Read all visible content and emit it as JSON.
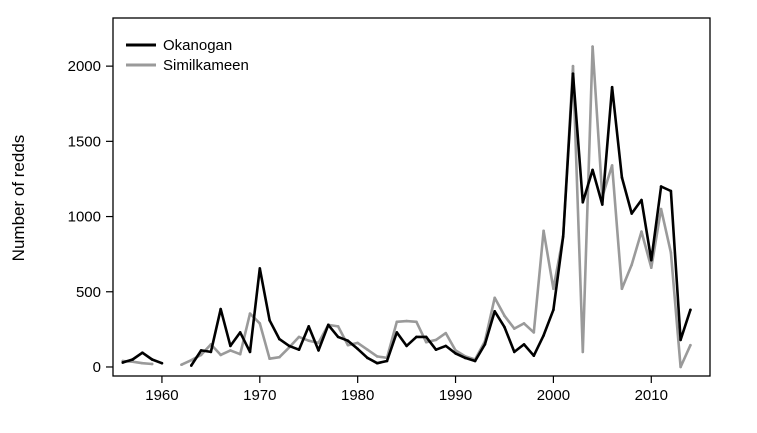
{
  "chart_data": {
    "type": "line",
    "title": "",
    "xlabel": "",
    "ylabel": "Number of redds",
    "xlim": [
      1955,
      2016
    ],
    "ylim": [
      -60,
      2320
    ],
    "xticks": [
      1960,
      1970,
      1980,
      1990,
      2000,
      2010
    ],
    "yticks": [
      0,
      500,
      1000,
      1500,
      2000
    ],
    "grid": false,
    "legend_position": "top-left",
    "series": [
      {
        "name": "Okanogan",
        "color": "#000000",
        "points": [
          [
            1956,
            30
          ],
          [
            1957,
            50
          ],
          [
            1958,
            95
          ],
          [
            1959,
            50
          ],
          [
            1960,
            25
          ],
          null,
          [
            1963,
            10
          ],
          [
            1964,
            110
          ],
          [
            1965,
            100
          ],
          [
            1966,
            385
          ],
          [
            1967,
            140
          ],
          [
            1968,
            230
          ],
          [
            1969,
            100
          ],
          [
            1970,
            655
          ],
          [
            1971,
            310
          ],
          [
            1972,
            185
          ],
          [
            1973,
            140
          ],
          [
            1974,
            115
          ],
          [
            1975,
            270
          ],
          [
            1976,
            110
          ],
          [
            1977,
            280
          ],
          [
            1978,
            200
          ],
          [
            1979,
            175
          ],
          [
            1980,
            120
          ],
          [
            1981,
            60
          ],
          [
            1982,
            25
          ],
          [
            1983,
            40
          ],
          [
            1984,
            230
          ],
          [
            1985,
            140
          ],
          [
            1986,
            200
          ],
          [
            1987,
            200
          ],
          [
            1988,
            115
          ],
          [
            1989,
            140
          ],
          [
            1990,
            90
          ],
          [
            1991,
            60
          ],
          [
            1992,
            40
          ],
          [
            1993,
            150
          ],
          [
            1994,
            370
          ],
          [
            1995,
            265
          ],
          [
            1996,
            100
          ],
          [
            1997,
            150
          ],
          [
            1998,
            75
          ],
          [
            1999,
            210
          ],
          [
            2000,
            380
          ],
          [
            2001,
            870
          ],
          [
            2002,
            1950
          ],
          [
            2003,
            1095
          ],
          [
            2004,
            1310
          ],
          [
            2005,
            1080
          ],
          [
            2006,
            1860
          ],
          [
            2007,
            1260
          ],
          [
            2008,
            1020
          ],
          [
            2009,
            1110
          ],
          [
            2010,
            710
          ],
          [
            2011,
            1200
          ],
          [
            2012,
            1170
          ],
          [
            2013,
            180
          ],
          [
            2014,
            380
          ]
        ]
      },
      {
        "name": "Similkameen",
        "color": "#9a9a9a",
        "points": [
          [
            1956,
            40
          ],
          [
            1957,
            35
          ],
          [
            1958,
            25
          ],
          [
            1959,
            20
          ],
          null,
          [
            1962,
            15
          ],
          [
            1963,
            45
          ],
          [
            1964,
            80
          ],
          [
            1965,
            150
          ],
          [
            1966,
            80
          ],
          [
            1967,
            110
          ],
          [
            1968,
            85
          ],
          [
            1969,
            355
          ],
          [
            1970,
            290
          ],
          [
            1971,
            55
          ],
          [
            1972,
            65
          ],
          [
            1973,
            130
          ],
          [
            1974,
            200
          ],
          [
            1975,
            175
          ],
          [
            1976,
            160
          ],
          [
            1977,
            280
          ],
          [
            1978,
            270
          ],
          [
            1979,
            145
          ],
          [
            1980,
            160
          ],
          [
            1981,
            115
          ],
          [
            1982,
            70
          ],
          [
            1983,
            60
          ],
          [
            1984,
            300
          ],
          [
            1985,
            305
          ],
          [
            1986,
            300
          ],
          [
            1987,
            165
          ],
          [
            1988,
            180
          ],
          [
            1989,
            225
          ],
          [
            1990,
            110
          ],
          [
            1991,
            70
          ],
          [
            1992,
            50
          ],
          [
            1993,
            170
          ],
          [
            1994,
            460
          ],
          [
            1995,
            340
          ],
          [
            1996,
            255
          ],
          [
            1997,
            290
          ],
          [
            1998,
            230
          ],
          [
            1999,
            905
          ],
          [
            2000,
            520
          ],
          [
            2001,
            870
          ],
          [
            2002,
            2000
          ],
          [
            2003,
            100
          ],
          [
            2004,
            2130
          ],
          [
            2005,
            1130
          ],
          [
            2006,
            1340
          ],
          [
            2007,
            520
          ],
          [
            2008,
            680
          ],
          [
            2009,
            900
          ],
          [
            2010,
            660
          ],
          [
            2011,
            1050
          ],
          [
            2012,
            760
          ],
          [
            2013,
            0
          ],
          [
            2014,
            145
          ]
        ]
      }
    ]
  }
}
